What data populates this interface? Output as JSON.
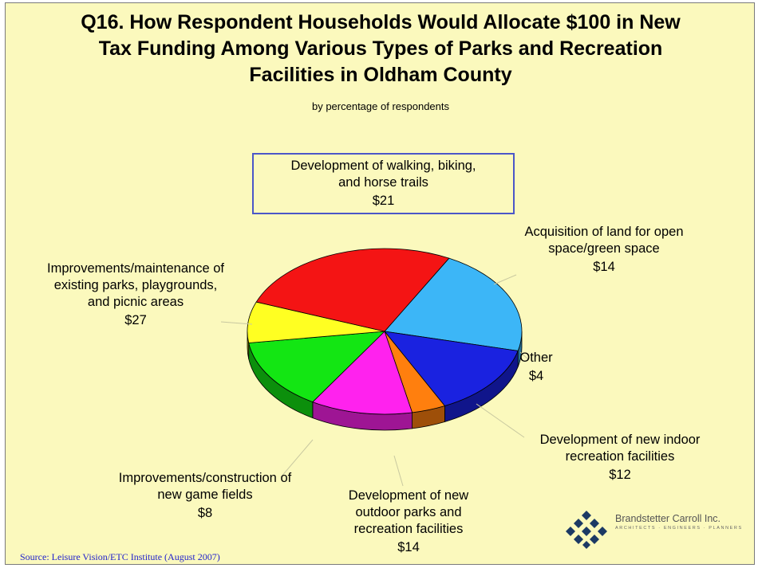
{
  "title_lines": [
    "Q16.  How Respondent Households Would Allocate $100 in New",
    "Tax Funding Among Various Types of Parks and Recreation",
    "Facilities in Oldham County"
  ],
  "subtitle": "by percentage of respondents",
  "source": "Source:  Leisure Vision/ETC Institute (August 2007)",
  "branding": {
    "name": "Brandstetter Carroll Inc.",
    "tagline": "ARCHITECTS · ENGINEERS · PLANNERS"
  },
  "chart_data": {
    "type": "pie",
    "style": "3d",
    "slices": [
      {
        "id": "trails",
        "label_lines": [
          "Development of walking, biking,",
          "and horse trails"
        ],
        "display_value": "$21",
        "value": 21,
        "color": "#3cb6f7"
      },
      {
        "id": "land",
        "label_lines": [
          "Acquisition of land for open",
          "space/green space"
        ],
        "display_value": "$14",
        "value": 14,
        "color": "#1a22e0"
      },
      {
        "id": "other",
        "label_lines": [
          "Other"
        ],
        "display_value": "$4",
        "value": 4,
        "color": "#ff7f0e"
      },
      {
        "id": "indoor",
        "label_lines": [
          "Development of new indoor",
          "recreation facilities"
        ],
        "display_value": "$12",
        "value": 12,
        "color": "#ff22ee"
      },
      {
        "id": "outdoor",
        "label_lines": [
          "Development of new",
          "outdoor parks and",
          "recreation facilities"
        ],
        "display_value": "$14",
        "value": 14,
        "color": "#13e613"
      },
      {
        "id": "fields",
        "label_lines": [
          "Improvements/construction of",
          "new game fields"
        ],
        "display_value": "$8",
        "value": 8,
        "color": "#ffff22"
      },
      {
        "id": "existing",
        "label_lines": [
          "Improvements/maintenance of",
          "existing parks, playgrounds,",
          "and picnic areas"
        ],
        "display_value": "$27",
        "value": 27,
        "color": "#f41414"
      }
    ]
  }
}
